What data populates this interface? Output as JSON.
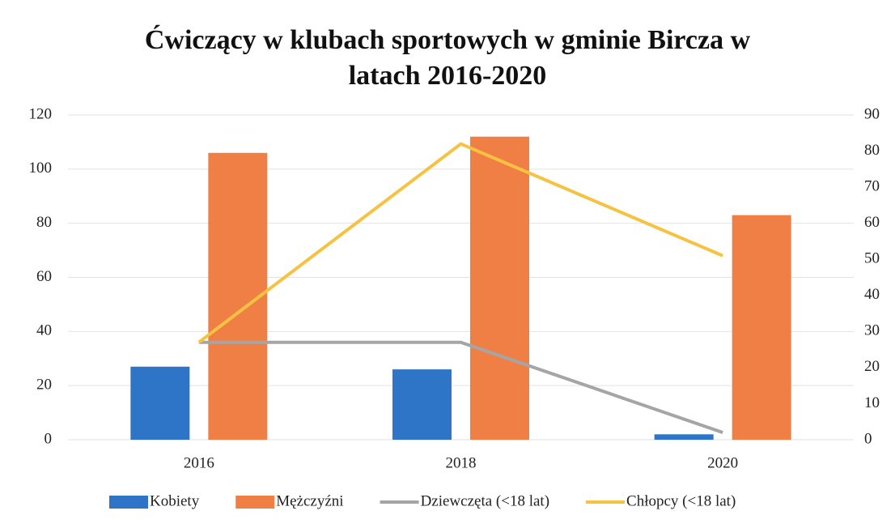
{
  "chart_data": {
    "type": "bar-line",
    "title": "Ćwiczący w klubach sportowych w gminie Bircza w latach 2016-2020",
    "categories": [
      "2016",
      "2018",
      "2020"
    ],
    "series": [
      {
        "name": "Kobiety",
        "color": "#2e75c8",
        "type": "bar",
        "values": [
          27,
          26,
          2
        ]
      },
      {
        "name": "Mężczyźni",
        "color": "#f07f45",
        "type": "bar",
        "values": [
          106,
          112,
          83
        ]
      },
      {
        "name": "Dziewczęta (<18 lat)",
        "color": "#a5a5a5",
        "type": "line",
        "axis": "y2",
        "values": [
          27,
          27,
          2
        ]
      },
      {
        "name": "Chłopcy (<18 lat)",
        "color": "#f5c242",
        "type": "line",
        "axis": "y2",
        "values": [
          27,
          82,
          51
        ]
      }
    ],
    "ylim": [
      0,
      120
    ],
    "yticks": [
      0,
      20,
      40,
      60,
      80,
      100,
      120
    ],
    "y2lim": [
      0,
      90
    ],
    "y2ticks": [
      0,
      10,
      20,
      30,
      40,
      50,
      60,
      70,
      80,
      90
    ],
    "grid": true,
    "legend": "bottom"
  }
}
